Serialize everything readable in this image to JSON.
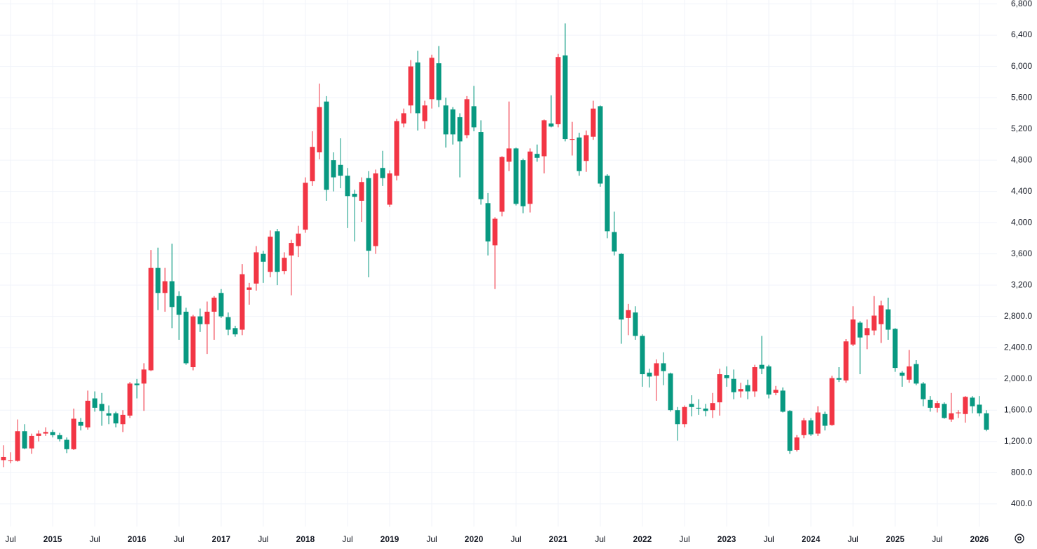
{
  "chart_data": {
    "type": "candlestick",
    "x": [
      "2014-06",
      "2014-07",
      "2014-08",
      "2014-09",
      "2014-10",
      "2014-11",
      "2014-12",
      "2015-01",
      "2015-02",
      "2015-03",
      "2015-04",
      "2015-05",
      "2015-06",
      "2015-07",
      "2015-08",
      "2015-09",
      "2015-10",
      "2015-11",
      "2015-12",
      "2016-01",
      "2016-02",
      "2016-03",
      "2016-04",
      "2016-05",
      "2016-06",
      "2016-07",
      "2016-08",
      "2016-09",
      "2016-10",
      "2016-11",
      "2016-12",
      "2017-01",
      "2017-02",
      "2017-03",
      "2017-04",
      "2017-05",
      "2017-06",
      "2017-07",
      "2017-08",
      "2017-09",
      "2017-10",
      "2017-11",
      "2017-12",
      "2018-01",
      "2018-02",
      "2018-03",
      "2018-04",
      "2018-05",
      "2018-06",
      "2018-07",
      "2018-08",
      "2018-09",
      "2018-10",
      "2018-11",
      "2018-12",
      "2019-01",
      "2019-02",
      "2019-03",
      "2019-04",
      "2019-05",
      "2019-06",
      "2019-07",
      "2019-08",
      "2019-09",
      "2019-10",
      "2019-11",
      "2019-12",
      "2020-01",
      "2020-02",
      "2020-03",
      "2020-04",
      "2020-05",
      "2020-06",
      "2020-07",
      "2020-08",
      "2020-09",
      "2020-10",
      "2020-11",
      "2020-12",
      "2021-01",
      "2021-02",
      "2021-03",
      "2021-04",
      "2021-05",
      "2021-06",
      "2021-07",
      "2021-08",
      "2021-09",
      "2021-10",
      "2021-11",
      "2021-12",
      "2022-01",
      "2022-02",
      "2022-03",
      "2022-04",
      "2022-05",
      "2022-06",
      "2022-07",
      "2022-08",
      "2022-09",
      "2022-10",
      "2022-11",
      "2022-12",
      "2023-01",
      "2023-02",
      "2023-03",
      "2023-04",
      "2023-05",
      "2023-06",
      "2023-07",
      "2023-08",
      "2023-09",
      "2023-10",
      "2023-11",
      "2023-12",
      "2024-01",
      "2024-02",
      "2024-03",
      "2024-04",
      "2024-05",
      "2024-06",
      "2024-07",
      "2024-08",
      "2024-09",
      "2024-10",
      "2024-11",
      "2024-12",
      "2025-01",
      "2025-02",
      "2025-03",
      "2025-04",
      "2025-05",
      "2025-06",
      "2025-07",
      "2025-08",
      "2025-09",
      "2025-10",
      "2025-11",
      "2025-12",
      "2026-01",
      "2026-02"
    ],
    "open": [
      960,
      950,
      950,
      1330,
      1110,
      1270,
      1300,
      1320,
      1280,
      1220,
      1100,
      1450,
      1380,
      1750,
      1680,
      1560,
      1560,
      1420,
      1530,
      1940,
      1940,
      2110,
      3420,
      3100,
      3250,
      3060,
      2860,
      2150,
      2800,
      2700,
      2860,
      3100,
      2790,
      2650,
      2630,
      3140,
      3220,
      3600,
      3370,
      3890,
      3380,
      3580,
      3700,
      3910,
      4530,
      4900,
      5550,
      4800,
      4740,
      4600,
      4370,
      4280,
      4570,
      3700,
      4700,
      4230,
      4600,
      5270,
      5500,
      6050,
      5300,
      5580,
      6040,
      5500,
      5450,
      5350,
      5120,
      5490,
      5160,
      4250,
      3710,
      4140,
      4780,
      4950,
      4800,
      4240,
      4880,
      4850,
      5270,
      5260,
      6140,
      5060,
      5090,
      4790,
      5100,
      5490,
      4600,
      3880,
      3600,
      2780,
      2850,
      2550,
      2080,
      2040,
      2200,
      2070,
      1600,
      1420,
      1680,
      1630,
      1620,
      1600,
      1700,
      2050,
      2000,
      1840,
      1920,
      1840,
      2180,
      2160,
      1820,
      1850,
      1590,
      1090,
      1280,
      1470,
      1300,
      1550,
      1410,
      2010,
      1980,
      2440,
      2720,
      2560,
      2620,
      2700,
      2890,
      2640,
      2080,
      1990,
      2190,
      1940,
      1730,
      1630,
      1680,
      1480,
      1560,
      1550,
      1760,
      1670,
      1560
    ],
    "high": [
      1150,
      1060,
      1480,
      1420,
      1300,
      1340,
      1380,
      1350,
      1310,
      1250,
      1620,
      1500,
      1850,
      1840,
      1820,
      1660,
      1580,
      1600,
      1960,
      2000,
      2200,
      3650,
      3680,
      3420,
      3730,
      3120,
      2910,
      2820,
      2900,
      2990,
      3060,
      3150,
      2850,
      2680,
      3470,
      3230,
      3700,
      3640,
      3900,
      3920,
      3620,
      3780,
      3960,
      4580,
      5170,
      5780,
      5620,
      4900,
      5080,
      4700,
      4420,
      4580,
      4660,
      4680,
      4920,
      4670,
      5330,
      5460,
      6080,
      6200,
      5560,
      6150,
      6260,
      5600,
      5480,
      5400,
      5620,
      5750,
      5310,
      4380,
      4070,
      4850,
      5550,
      4960,
      4820,
      4950,
      5000,
      5320,
      5630,
      6160,
      6550,
      5290,
      5150,
      5180,
      5560,
      5500,
      4620,
      4140,
      3610,
      2960,
      2930,
      2570,
      2130,
      2250,
      2340,
      2080,
      1640,
      1660,
      1790,
      1740,
      1680,
      1820,
      2130,
      2160,
      2120,
      1950,
      1990,
      2180,
      2550,
      2180,
      1910,
      1890,
      1600,
      1280,
      1500,
      1500,
      1650,
      1580,
      2040,
      2150,
      2510,
      2930,
      2740,
      2760,
      3060,
      3000,
      3040,
      2650,
      2100,
      2370,
      2240,
      1960,
      1780,
      1720,
      1700,
      1820,
      1600,
      1780,
      1780,
      1780,
      1600
    ],
    "low": [
      870,
      920,
      940,
      1100,
      1040,
      1200,
      1270,
      1250,
      1200,
      1050,
      1090,
      1340,
      1350,
      1580,
      1400,
      1420,
      1380,
      1320,
      1500,
      1750,
      1590,
      2100,
      2880,
      2860,
      2650,
      2500,
      2180,
      2110,
      2600,
      2320,
      2500,
      2780,
      2560,
      2540,
      2560,
      2950,
      3130,
      3230,
      3300,
      3200,
      3340,
      3070,
      3560,
      3870,
      4470,
      4810,
      4280,
      4400,
      4440,
      3930,
      3760,
      4010,
      3300,
      3600,
      4470,
      4200,
      4540,
      5220,
      5400,
      5180,
      5200,
      5460,
      5480,
      4960,
      5000,
      4580,
      5080,
      5170,
      4230,
      3580,
      3150,
      4080,
      4660,
      4220,
      4120,
      4130,
      4780,
      4630,
      5220,
      5220,
      5040,
      4860,
      4600,
      4650,
      5060,
      4460,
      3800,
      3580,
      2450,
      2560,
      2500,
      1900,
      1890,
      1720,
      1920,
      1580,
      1210,
      1380,
      1520,
      1540,
      1520,
      1500,
      1530,
      1900,
      1740,
      1760,
      1740,
      1770,
      2060,
      1750,
      1790,
      1570,
      1040,
      1070,
      1240,
      1270,
      1270,
      1340,
      1400,
      1960,
      1950,
      2420,
      2060,
      2380,
      2560,
      2460,
      2500,
      2090,
      1900,
      1950,
      1920,
      1650,
      1580,
      1570,
      1490,
      1450,
      1500,
      1440,
      1560,
      1520,
      1330
    ],
    "close": [
      1000,
      960,
      1330,
      1110,
      1270,
      1300,
      1320,
      1280,
      1230,
      1100,
      1490,
      1400,
      1720,
      1630,
      1590,
      1530,
      1430,
      1540,
      1940,
      1920,
      2120,
      3420,
      3100,
      3250,
      2920,
      2820,
      2200,
      2800,
      2700,
      2860,
      3040,
      2800,
      2630,
      2570,
      3340,
      3170,
      3620,
      3500,
      3820,
      3370,
      3550,
      3740,
      3860,
      4510,
      4970,
      5480,
      4420,
      4580,
      4600,
      4340,
      4330,
      4520,
      3640,
      4630,
      4570,
      4630,
      5300,
      5400,
      6000,
      5400,
      5500,
      6110,
      5570,
      5130,
      5130,
      5040,
      5580,
      5220,
      4300,
      3760,
      4050,
      4840,
      4950,
      4240,
      4210,
      4910,
      4830,
      5310,
      5230,
      6120,
      5070,
      5070,
      4660,
      5120,
      5460,
      4500,
      3890,
      3630,
      2760,
      2880,
      2550,
      2060,
      2030,
      2200,
      2100,
      1600,
      1420,
      1640,
      1640,
      1620,
      1590,
      1690,
      2060,
      2010,
      1830,
      1870,
      1840,
      2150,
      2130,
      1800,
      1860,
      1580,
      1080,
      1250,
      1470,
      1290,
      1570,
      1400,
      2010,
      1990,
      2480,
      2760,
      2530,
      2650,
      2810,
      2940,
      2630,
      2140,
      2040,
      2160,
      1940,
      1740,
      1630,
      1690,
      1500,
      1560,
      1570,
      1770,
      1650,
      1560,
      1350
    ],
    "up_color": "#f23645",
    "down_color": "#089981",
    "ylim": [
      110,
      6850
    ],
    "yticks": [
      {
        "value": 400,
        "label": "400.0"
      },
      {
        "value": 800,
        "label": "800.0"
      },
      {
        "value": 1200,
        "label": "1,200.0"
      },
      {
        "value": 1600,
        "label": "1,600.0"
      },
      {
        "value": 2000,
        "label": "2,000.0"
      },
      {
        "value": 2400,
        "label": "2,400.0"
      },
      {
        "value": 2800,
        "label": "2,800.0"
      },
      {
        "value": 3200,
        "label": "3,200"
      },
      {
        "value": 3600,
        "label": "3,600"
      },
      {
        "value": 4000,
        "label": "4,000"
      },
      {
        "value": 4400,
        "label": "4,400"
      },
      {
        "value": 4800,
        "label": "4,800"
      },
      {
        "value": 5200,
        "label": "5,200"
      },
      {
        "value": 5600,
        "label": "5,600"
      },
      {
        "value": 6000,
        "label": "6,000"
      },
      {
        "value": 6400,
        "label": "6,400"
      },
      {
        "value": 6800,
        "label": "6,800"
      }
    ],
    "xticks": [
      {
        "value": "2014-07",
        "label": "Jul"
      },
      {
        "value": "2015-01",
        "label": "2015"
      },
      {
        "value": "2015-07",
        "label": "Jul"
      },
      {
        "value": "2016-01",
        "label": "2016"
      },
      {
        "value": "2016-07",
        "label": "Jul"
      },
      {
        "value": "2017-01",
        "label": "2017"
      },
      {
        "value": "2017-07",
        "label": "Jul"
      },
      {
        "value": "2018-01",
        "label": "2018"
      },
      {
        "value": "2018-07",
        "label": "Jul"
      },
      {
        "value": "2019-01",
        "label": "2019"
      },
      {
        "value": "2019-07",
        "label": "Jul"
      },
      {
        "value": "2020-01",
        "label": "2020"
      },
      {
        "value": "2020-07",
        "label": "Jul"
      },
      {
        "value": "2021-01",
        "label": "2021"
      },
      {
        "value": "2021-07",
        "label": "Jul"
      },
      {
        "value": "2022-01",
        "label": "2022"
      },
      {
        "value": "2022-07",
        "label": "Jul"
      },
      {
        "value": "2023-01",
        "label": "2023"
      },
      {
        "value": "2023-07",
        "label": "Jul"
      },
      {
        "value": "2024-01",
        "label": "2024"
      },
      {
        "value": "2024-07",
        "label": "Jul"
      },
      {
        "value": "2025-01",
        "label": "2025"
      },
      {
        "value": "2025-07",
        "label": "Jul"
      },
      {
        "value": "2026-01",
        "label": "2026"
      }
    ],
    "grid": true
  }
}
